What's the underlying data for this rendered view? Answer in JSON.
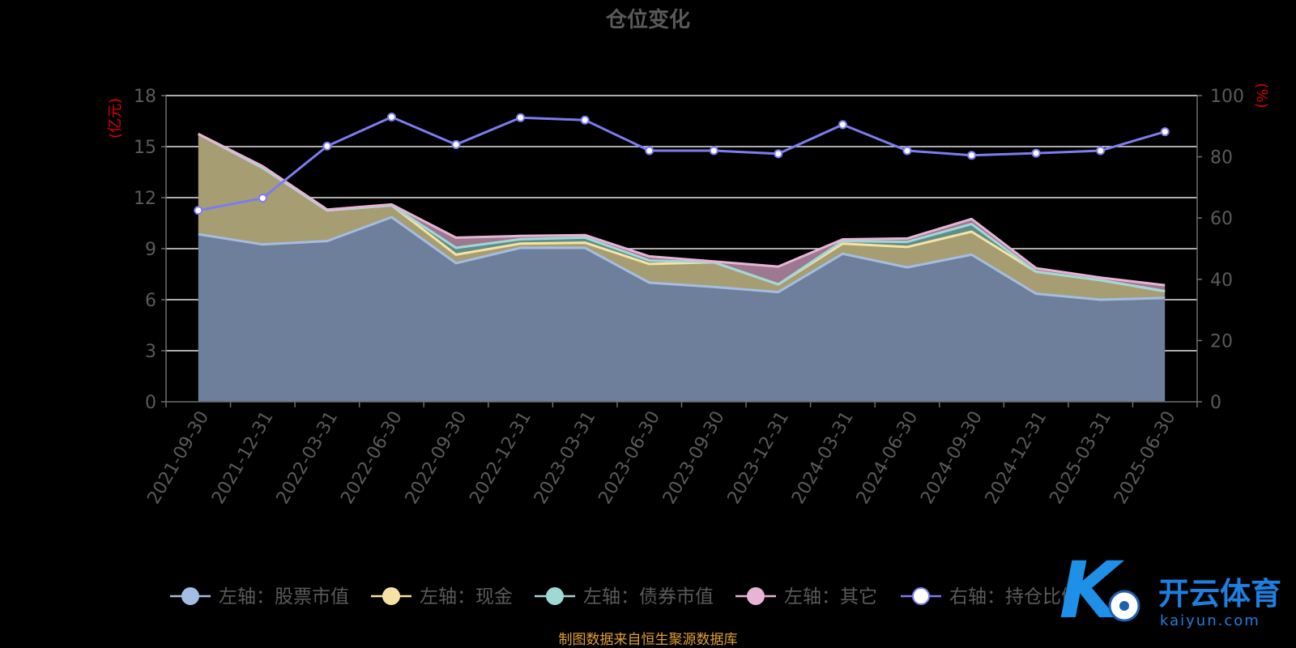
{
  "chart_data": {
    "type": "area",
    "title": "仓位变化",
    "left_axis_unit": "(亿元)",
    "right_axis_unit": "(%)",
    "left_ylim": [
      0,
      18
    ],
    "left_ticks": [
      "0",
      "3",
      "6",
      "9",
      "12",
      "15",
      "18"
    ],
    "right_ylim": [
      0,
      100
    ],
    "right_ticks": [
      "0",
      "20",
      "40",
      "60",
      "80",
      "100"
    ],
    "grid": true,
    "legend_position": "bottom",
    "categories": [
      "2021-09-30",
      "2021-12-31",
      "2022-03-31",
      "2022-06-30",
      "2022-09-30",
      "2022-12-31",
      "2023-03-31",
      "2023-06-30",
      "2023-09-30",
      "2023-12-31",
      "2024-03-31",
      "2024-06-30",
      "2024-09-30",
      "2024-12-31",
      "2025-03-31",
      "2025-06-30"
    ],
    "series": [
      {
        "name": "左轴：股票市值",
        "axis": "left",
        "stack": true,
        "color": "#a3bde3",
        "values": [
          9.85,
          9.25,
          9.45,
          10.85,
          8.15,
          9.05,
          9.05,
          7.0,
          6.75,
          6.45,
          8.7,
          7.9,
          8.65,
          6.35,
          6.0,
          6.1
        ]
      },
      {
        "name": "左轴：现金",
        "axis": "left",
        "stack": true,
        "color": "#f7e3a1",
        "values": [
          5.9,
          4.5,
          1.8,
          0.7,
          0.5,
          0.25,
          0.3,
          1.1,
          1.45,
          0.45,
          0.6,
          1.2,
          1.35,
          1.3,
          1.15,
          0.4
        ]
      },
      {
        "name": "左轴：债券市值",
        "axis": "left",
        "stack": true,
        "color": "#a0d8d6",
        "values": [
          0,
          0,
          0,
          0,
          0.4,
          0.25,
          0.3,
          0.2,
          0,
          0,
          0.15,
          0.3,
          0.45,
          0,
          0,
          0
        ]
      },
      {
        "name": "左轴：其它",
        "axis": "left",
        "stack": true,
        "color": "#e8b4d6",
        "values": [
          0,
          0.1,
          0.05,
          0.05,
          0.6,
          0.2,
          0.15,
          0.25,
          0.05,
          1.05,
          0.1,
          0.2,
          0.3,
          0.2,
          0.15,
          0.35
        ]
      },
      {
        "name": "右轴：持仓比例",
        "axis": "right",
        "stack": false,
        "color": "#7b7cf0",
        "values": [
          62.5,
          66.5,
          83.5,
          93.0,
          84.0,
          92.8,
          92.0,
          82.0,
          82.0,
          81.0,
          90.5,
          82.0,
          80.5,
          81.2,
          82.0,
          88.2
        ]
      }
    ],
    "source_note": "制图数据来自恒生聚源数据库"
  },
  "watermark": {
    "cn": "开云体育",
    "en": "kaiyun.com",
    "logo_letter": "K"
  }
}
